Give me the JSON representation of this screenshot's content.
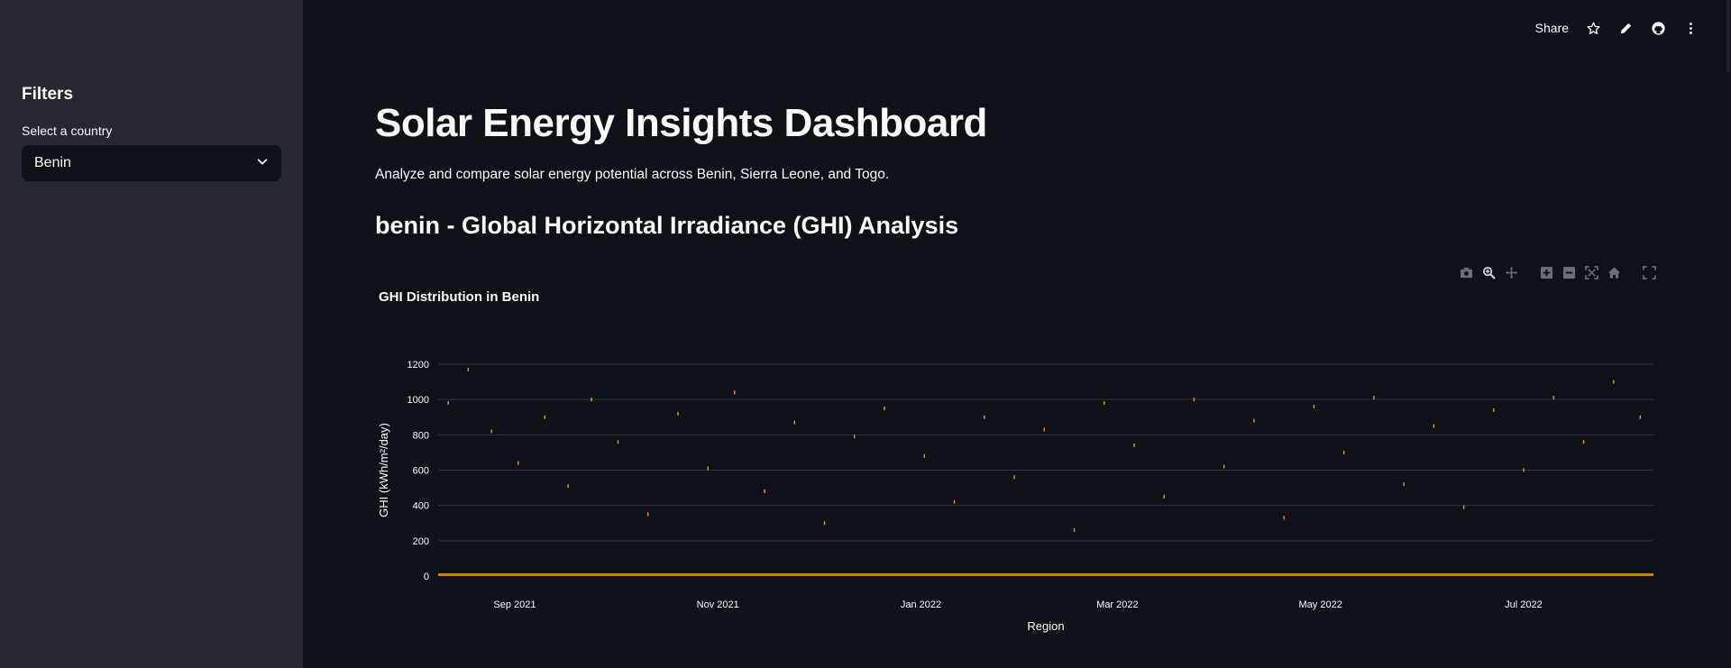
{
  "sidebar": {
    "heading": "Filters",
    "select_label": "Select a country",
    "selected_country": "Benin"
  },
  "toolbar": {
    "share_label": "Share",
    "icons": [
      "star-icon",
      "pencil-icon",
      "github-icon",
      "more-vertical-icon"
    ]
  },
  "main": {
    "title": "Solar Energy Insights Dashboard",
    "subtitle": "Analyze and compare solar energy potential across Benin, Sierra Leone, and Togo.",
    "section_title": "benin - Global Horizontal Irradiance (GHI) Analysis"
  },
  "modebar": {
    "icons": [
      "camera-icon",
      "zoom-icon",
      "pan-icon",
      "zoom-in-icon",
      "zoom-out-icon",
      "autoscale-icon",
      "home-icon",
      "fullscreen-icon"
    ]
  },
  "chart_data": {
    "type": "scatter",
    "title": "GHI Distribution in Benin",
    "xlabel": "Region",
    "ylabel": "GHI (kWh/m²/day)",
    "x_range": [
      "2021-08-09",
      "2022-08-09"
    ],
    "ylim": [
      0,
      1200
    ],
    "yticks": [
      0,
      200,
      400,
      600,
      800,
      1000,
      1200
    ],
    "xticks": [
      {
        "date": "2021-09-01",
        "label": "Sep 2021"
      },
      {
        "date": "2021-11-01",
        "label": "Nov 2021"
      },
      {
        "date": "2022-01-01",
        "label": "Jan 2022"
      },
      {
        "date": "2022-03-01",
        "label": "Mar 2022"
      },
      {
        "date": "2022-05-01",
        "label": "May 2022"
      },
      {
        "date": "2022-07-01",
        "label": "Jul 2022"
      }
    ],
    "grid": true,
    "marker_color": "#f2b01e",
    "baseline_value": 0,
    "sample_points": [
      [
        "2021-08-12",
        980
      ],
      [
        "2021-08-18",
        1170
      ],
      [
        "2021-08-25",
        820
      ],
      [
        "2021-09-02",
        640
      ],
      [
        "2021-09-10",
        900
      ],
      [
        "2021-09-17",
        510
      ],
      [
        "2021-09-24",
        1000
      ],
      [
        "2021-10-02",
        760
      ],
      [
        "2021-10-11",
        350
      ],
      [
        "2021-10-20",
        920
      ],
      [
        "2021-10-29",
        610
      ],
      [
        "2021-11-06",
        1040
      ],
      [
        "2021-11-15",
        480
      ],
      [
        "2021-11-24",
        870
      ],
      [
        "2021-12-03",
        300
      ],
      [
        "2021-12-12",
        790
      ],
      [
        "2021-12-21",
        950
      ],
      [
        "2022-01-02",
        680
      ],
      [
        "2022-01-11",
        420
      ],
      [
        "2022-01-20",
        900
      ],
      [
        "2022-01-29",
        560
      ],
      [
        "2022-02-07",
        830
      ],
      [
        "2022-02-16",
        260
      ],
      [
        "2022-02-25",
        980
      ],
      [
        "2022-03-06",
        740
      ],
      [
        "2022-03-15",
        450
      ],
      [
        "2022-03-24",
        1000
      ],
      [
        "2022-04-02",
        620
      ],
      [
        "2022-04-11",
        880
      ],
      [
        "2022-04-20",
        330
      ],
      [
        "2022-04-29",
        960
      ],
      [
        "2022-05-08",
        700
      ],
      [
        "2022-05-17",
        1010
      ],
      [
        "2022-05-26",
        520
      ],
      [
        "2022-06-04",
        850
      ],
      [
        "2022-06-13",
        390
      ],
      [
        "2022-06-22",
        940
      ],
      [
        "2022-07-01",
        600
      ],
      [
        "2022-07-10",
        1010
      ],
      [
        "2022-07-19",
        760
      ],
      [
        "2022-07-28",
        1100
      ],
      [
        "2022-08-05",
        900
      ]
    ]
  }
}
